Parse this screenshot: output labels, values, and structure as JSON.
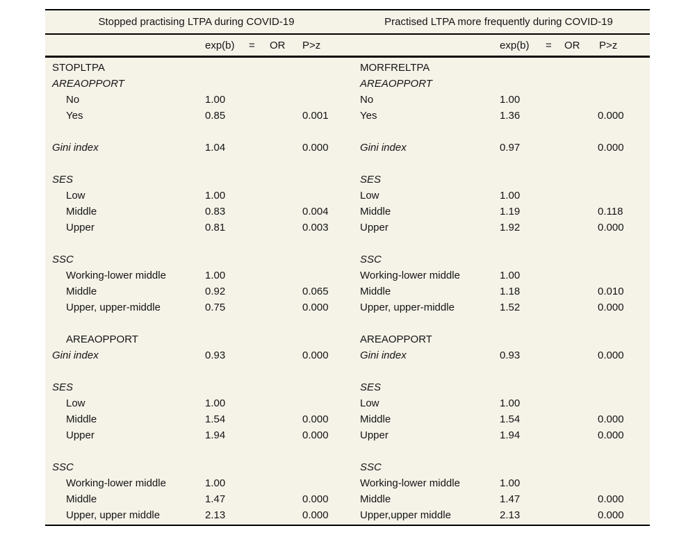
{
  "table": {
    "panels": [
      {
        "title": "Stopped practising LTPA during COVID-19",
        "col_headers": [
          "exp(b)",
          "=",
          "OR",
          "P>z"
        ],
        "rows": [
          {
            "label": "STOPLTPA"
          },
          {
            "label": "AREAOPPORT",
            "italic": true
          },
          {
            "label": "No",
            "indent": true,
            "expb": "1.00"
          },
          {
            "label": "Yes",
            "indent": true,
            "expb": "0.85",
            "pz": "0.001"
          },
          {
            "spacer": true
          },
          {
            "label": "Gini index",
            "italic": true,
            "expb": "1.04",
            "pz": "0.000"
          },
          {
            "spacer": true
          },
          {
            "label": "SES",
            "italic": true
          },
          {
            "label": "Low",
            "indent": true,
            "expb": "1.00"
          },
          {
            "label": "Middle",
            "indent": true,
            "expb": "0.83",
            "pz": "0.004"
          },
          {
            "label": "Upper",
            "indent": true,
            "expb": "0.81",
            "pz": "0.003"
          },
          {
            "spacer": true
          },
          {
            "label": "SSC",
            "italic": true
          },
          {
            "label": "Working-lower middle",
            "indent": true,
            "expb": "1.00"
          },
          {
            "label": "Middle",
            "indent": true,
            "expb": "0.92",
            "pz": "0.065"
          },
          {
            "label": "Upper, upper-middle",
            "indent": true,
            "expb": "0.75",
            "pz": "0.000"
          },
          {
            "spacer": true
          },
          {
            "label": "AREAOPPORT",
            "indent": true
          },
          {
            "label": "Gini index",
            "italic": true,
            "expb": "0.93",
            "pz": "0.000"
          },
          {
            "spacer": true
          },
          {
            "label": "SES",
            "italic": true
          },
          {
            "label": "Low",
            "indent": true,
            "expb": "1.00"
          },
          {
            "label": "Middle",
            "indent": true,
            "expb": "1.54",
            "pz": "0.000"
          },
          {
            "label": "Upper",
            "indent": true,
            "expb": "1.94",
            "pz": "0.000"
          },
          {
            "spacer": true
          },
          {
            "label": "SSC",
            "italic": true
          },
          {
            "label": "Working-lower middle",
            "indent": true,
            "expb": "1.00"
          },
          {
            "label": "Middle",
            "indent": true,
            "expb": "1.47",
            "pz": "0.000"
          },
          {
            "label": "Upper, upper middle",
            "indent": true,
            "expb": "2.13",
            "pz": "0.000"
          }
        ]
      },
      {
        "title": "Practised LTPA more frequently during COVID-19",
        "col_headers": [
          "exp(b)",
          "=",
          "OR",
          "P>z"
        ],
        "rows": [
          {
            "label": "MORFRELTPA"
          },
          {
            "label": "AREAOPPORT",
            "italic": true
          },
          {
            "label": "No",
            "expb": "1.00"
          },
          {
            "label": "Yes",
            "expb": "1.36",
            "pz": "0.000"
          },
          {
            "spacer": true
          },
          {
            "label": "Gini index",
            "italic": true,
            "expb": "0.97",
            "pz": "0.000"
          },
          {
            "spacer": true
          },
          {
            "label": "SES",
            "italic": true
          },
          {
            "label": "Low",
            "expb": "1.00"
          },
          {
            "label": "Middle",
            "expb": "1.19",
            "pz": "0.118"
          },
          {
            "label": "Upper",
            "expb": "1.92",
            "pz": "0.000"
          },
          {
            "spacer": true
          },
          {
            "label": "SSC",
            "italic": true
          },
          {
            "label": "Working-lower middle",
            "expb": "1.00"
          },
          {
            "label": "Middle",
            "expb": "1.18",
            "pz": "0.010"
          },
          {
            "label": "Upper, upper-middle",
            "expb": "1.52",
            "pz": "0.000"
          },
          {
            "spacer": true
          },
          {
            "label": "AREAOPPORT"
          },
          {
            "label": "Gini index",
            "italic": true,
            "expb": "0.93",
            "pz": "0.000"
          },
          {
            "spacer": true
          },
          {
            "label": "SES",
            "italic": true
          },
          {
            "label": "Low",
            "expb": "1.00"
          },
          {
            "label": "Middle",
            "expb": "1.54",
            "pz": "0.000"
          },
          {
            "label": "Upper",
            "expb": "1.94",
            "pz": "0.000"
          },
          {
            "spacer": true
          },
          {
            "label": "SSC",
            "italic": true
          },
          {
            "label": "Working-lower middle",
            "expb": "1.00"
          },
          {
            "label": "Middle",
            "expb": "1.47",
            "pz": "0.000"
          },
          {
            "label": "Upper,upper middle",
            "expb": "2.13",
            "pz": "0.000"
          }
        ]
      }
    ],
    "colors": {
      "table_background": "#f5f2e8",
      "rule_color": "#000000",
      "text_color": "#141414",
      "page_background": "#ffffff"
    }
  }
}
